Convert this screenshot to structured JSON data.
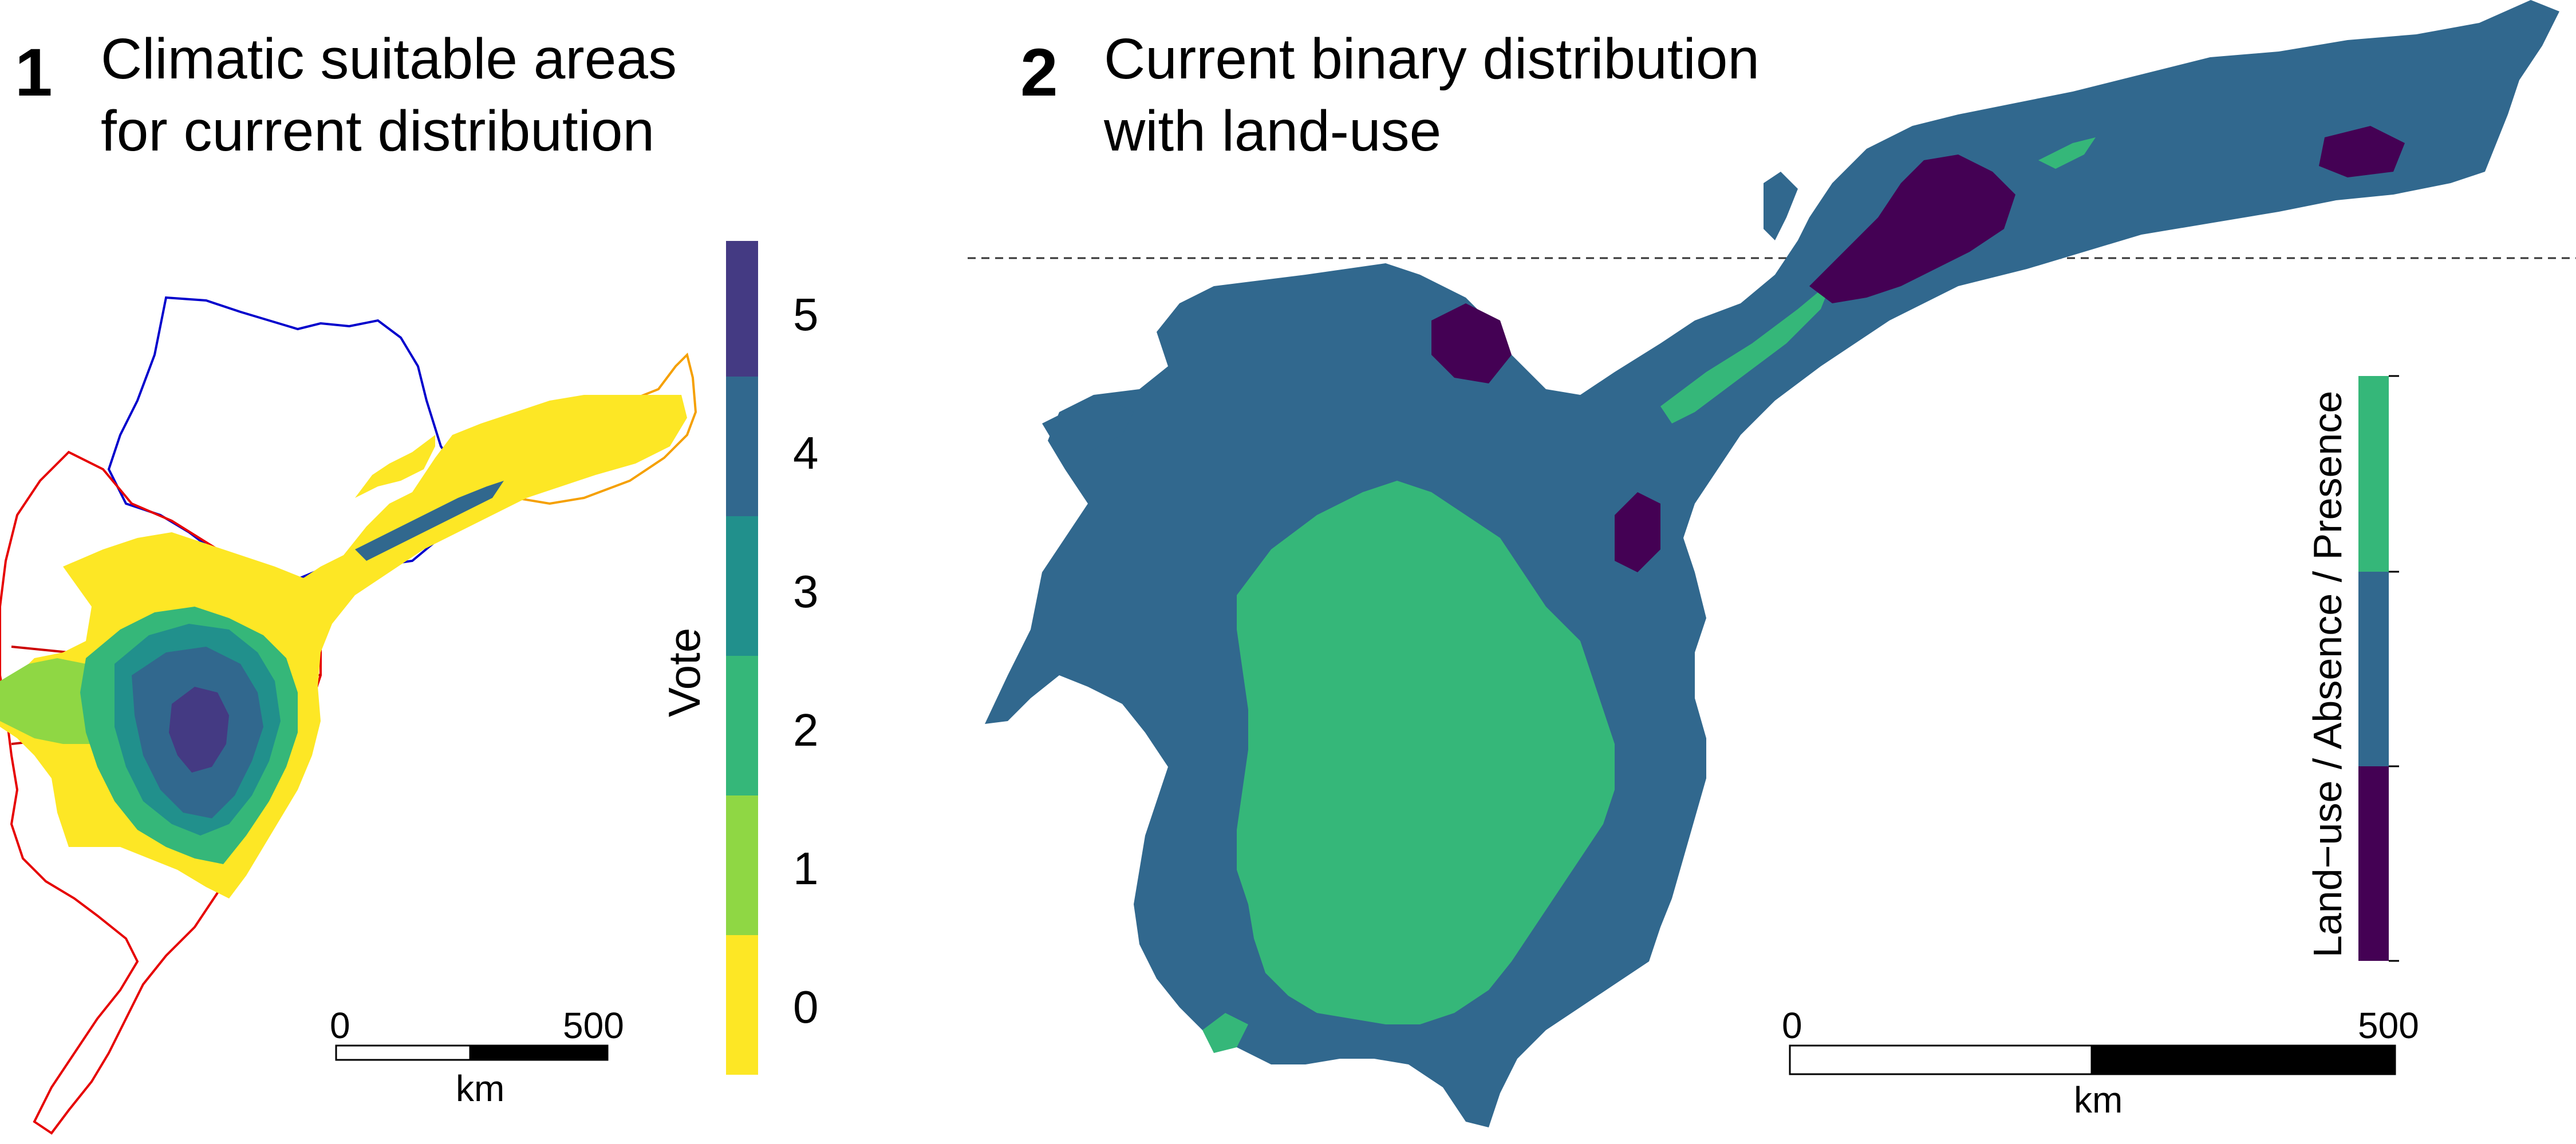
{
  "panel1": {
    "number": "1",
    "title_line1": "Climatic suitable areas",
    "title_line2": "for current distribution",
    "legend": {
      "title": "Vote",
      "classes": [
        {
          "label": "0",
          "color": "#fde725"
        },
        {
          "label": "1",
          "color": "#8fd744"
        },
        {
          "label": "2",
          "color": "#35b779"
        },
        {
          "label": "3",
          "color": "#21908c"
        },
        {
          "label": "4",
          "color": "#31688e"
        },
        {
          "label": "5",
          "color": "#443a83"
        }
      ]
    },
    "scalebar": {
      "start": "0",
      "end": "500",
      "unit": "km"
    },
    "boundary_colors": {
      "state_a": "#0000cc",
      "state_b": "#e60000",
      "state_c": "#f5a000"
    }
  },
  "panel2": {
    "number": "2",
    "title_line1": "Current binary distribution",
    "title_line2": "with land-use",
    "legend": {
      "title": "Land−use / Absence / Presence",
      "classes": [
        {
          "label": "Land-use",
          "color": "#440154"
        },
        {
          "label": "Absence",
          "color": "#31688e"
        },
        {
          "label": "Presence",
          "color": "#35b779"
        }
      ]
    },
    "scalebar": {
      "start": "0",
      "end": "500",
      "unit": "km"
    }
  }
}
